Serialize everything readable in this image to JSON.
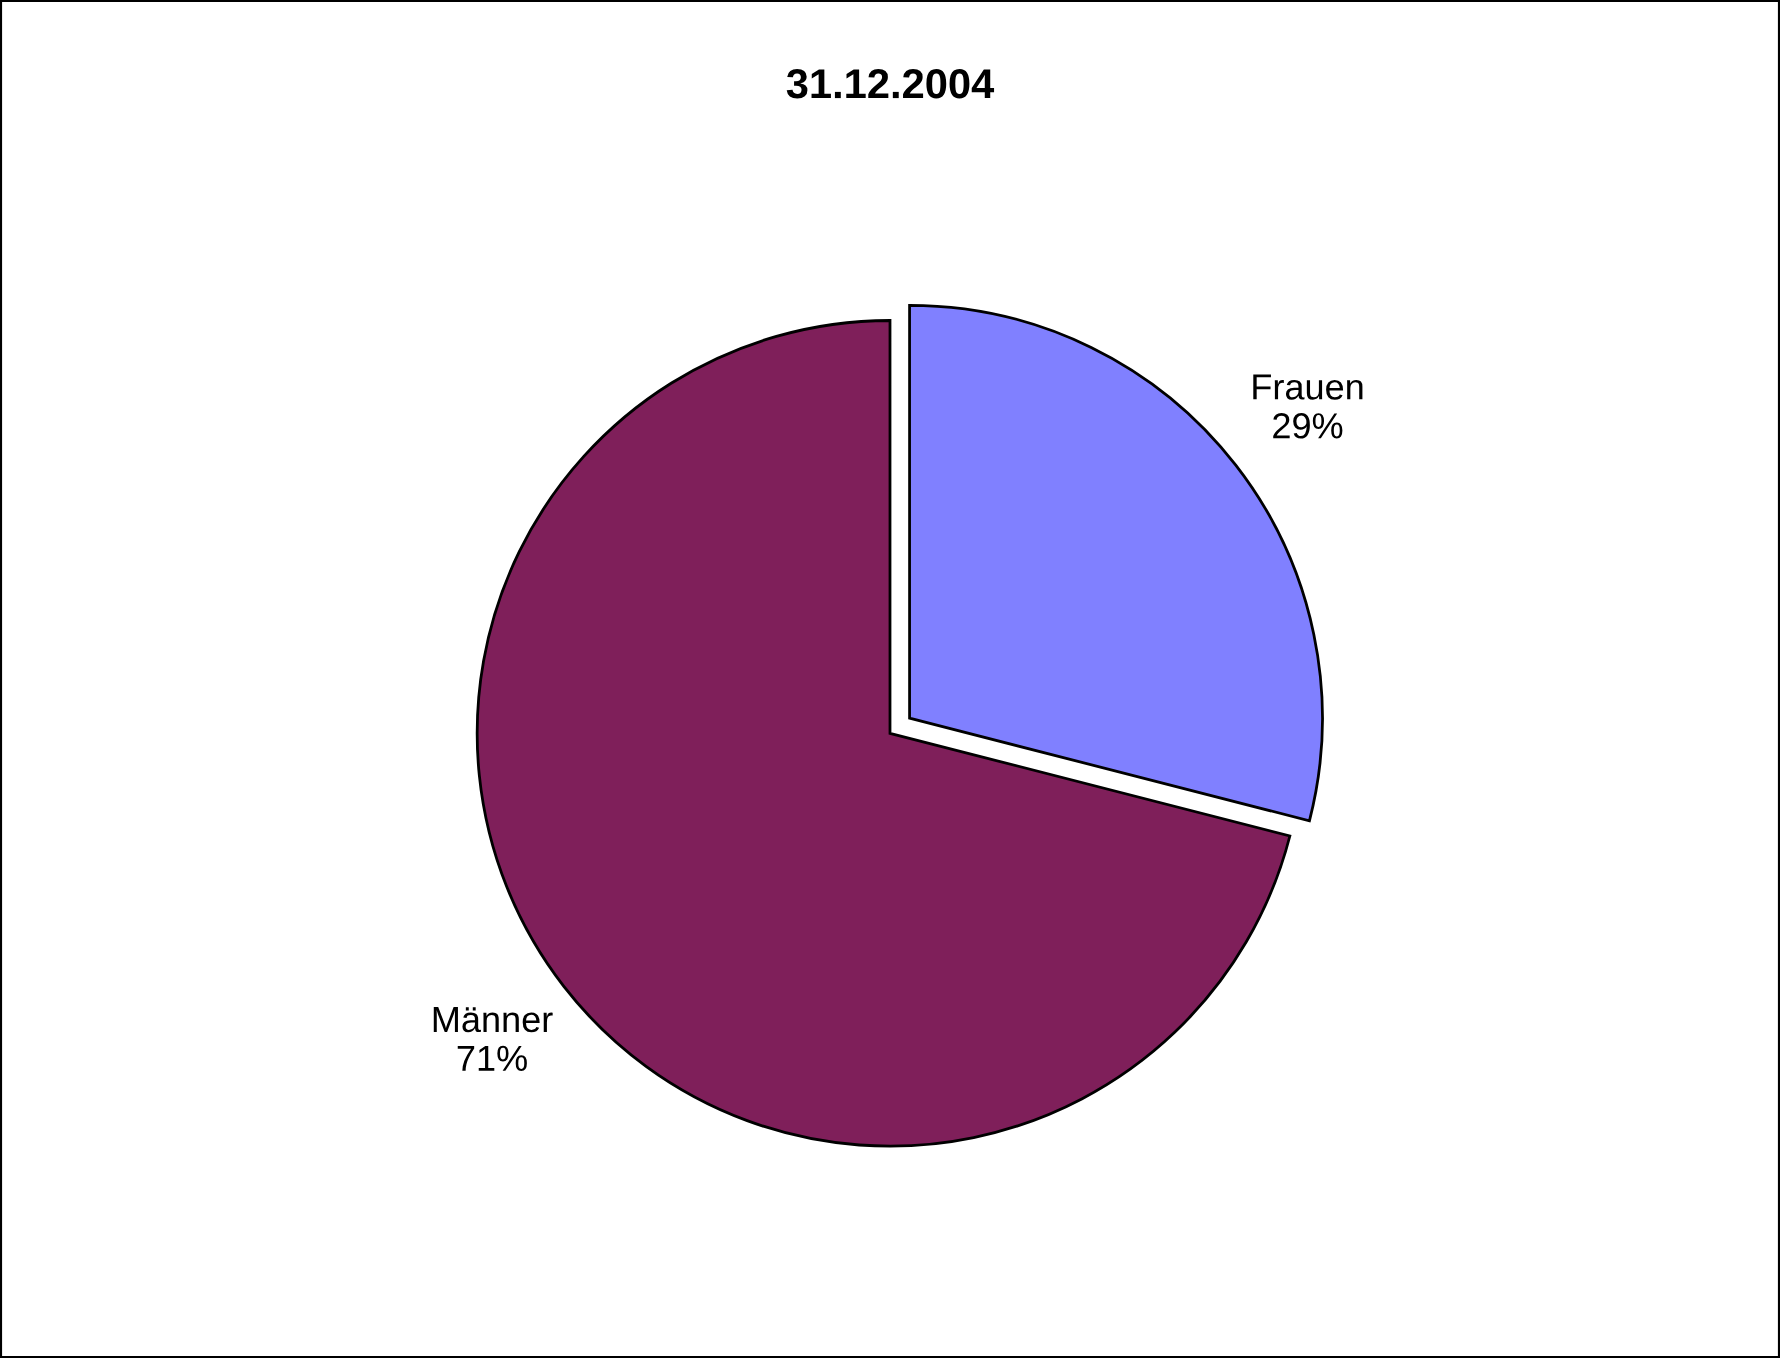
{
  "chart_data": {
    "type": "pie",
    "title": "31.12.2004",
    "categories": [
      "Frauen",
      "Männer"
    ],
    "values": [
      29,
      71
    ],
    "value_labels": [
      "29%",
      "71%"
    ],
    "colors": [
      "#8080ff",
      "#7f1f5a"
    ],
    "legend": false
  }
}
